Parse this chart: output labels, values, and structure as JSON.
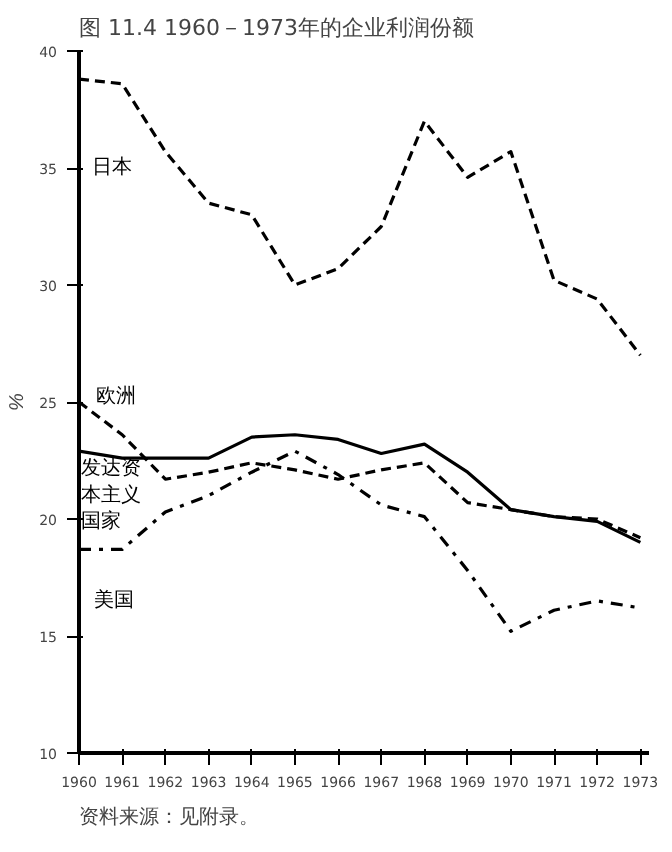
{
  "chart_data": {
    "type": "line",
    "title": "图 11.4 1960－1973年的企业利润份额",
    "ylabel": "%",
    "annotations": [
      "资料来源：见附录。"
    ],
    "x": [
      1960,
      1961,
      1962,
      1963,
      1964,
      1965,
      1966,
      1967,
      1968,
      1969,
      1970,
      1971,
      1972,
      1973
    ],
    "xlim": [
      1960,
      1973.2
    ],
    "xticks": [
      1960,
      1961,
      1962,
      1963,
      1964,
      1965,
      1966,
      1967,
      1968,
      1969,
      1970,
      1971,
      1972,
      1973
    ],
    "ylim": [
      10,
      40
    ],
    "yticks": [
      10,
      15,
      20,
      25,
      30,
      35,
      40
    ],
    "grid": false,
    "marker": "none",
    "series": [
      {
        "name": "日本",
        "color": "#000000",
        "line_style": "dashed",
        "values": [
          38.8,
          38.6,
          35.7,
          33.5,
          33,
          30,
          30.7,
          32.5,
          37,
          34.6,
          35.7,
          30.2,
          29.4,
          27
        ]
      },
      {
        "name": "欧洲",
        "color": "#000000",
        "line_style": "dashed",
        "values": [
          25,
          23.6,
          21.7,
          22,
          22.4,
          22.1,
          21.7,
          22.1,
          22.4,
          20.7,
          20.4,
          20.1,
          20,
          19.2
        ]
      },
      {
        "name": "发达资本主义国家",
        "color": "#000000",
        "line_style": "solid",
        "values": [
          22.9,
          22.6,
          22.6,
          22.6,
          23.5,
          23.6,
          23.4,
          22.8,
          23.2,
          22,
          20.4,
          20.1,
          19.9,
          19
        ]
      },
      {
        "name": "美国",
        "color": "#000000",
        "line_style": "dashdot",
        "values": [
          18.7,
          18.7,
          20.3,
          21,
          22,
          22.9,
          21.9,
          20.6,
          20.1,
          17.8,
          15.2,
          16.1,
          16.5,
          16.2
        ]
      }
    ]
  }
}
